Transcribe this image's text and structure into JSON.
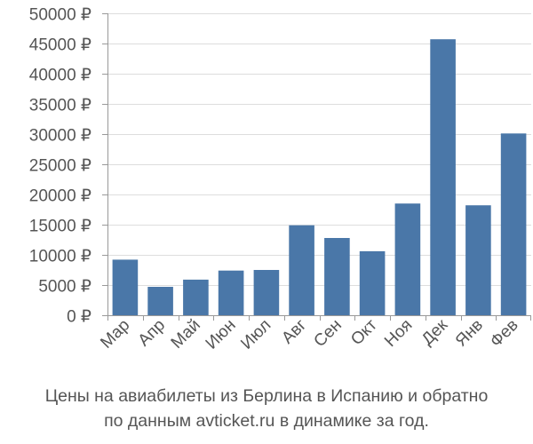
{
  "chart_data": {
    "type": "bar",
    "categories": [
      "Мар",
      "Апр",
      "Май",
      "Июн",
      "Июл",
      "Авг",
      "Сен",
      "Окт",
      "Ноя",
      "Дек",
      "Янв",
      "Фев"
    ],
    "values": [
      9200,
      4700,
      5900,
      7400,
      7500,
      14900,
      12800,
      10600,
      18500,
      45700,
      18200,
      30100
    ],
    "ylim": [
      0,
      50000
    ],
    "yticks": [
      0,
      5000,
      10000,
      15000,
      20000,
      25000,
      30000,
      35000,
      40000,
      45000,
      50000
    ],
    "ytick_labels": [
      "0 ₽",
      "5000 ₽",
      "10000 ₽",
      "15000 ₽",
      "20000 ₽",
      "25000 ₽",
      "30000 ₽",
      "35000 ₽",
      "40000 ₽",
      "45000 ₽",
      "50000 ₽"
    ],
    "grid": "horizontal",
    "bar_color": "#4a77a8",
    "grid_color": "#dddddd",
    "axis_color": "#999999",
    "caption_line1": "Цены на авиабилеты из Берлина в Испанию и обратно",
    "caption_line2": "по данным avticket.ru в динамике за год."
  }
}
